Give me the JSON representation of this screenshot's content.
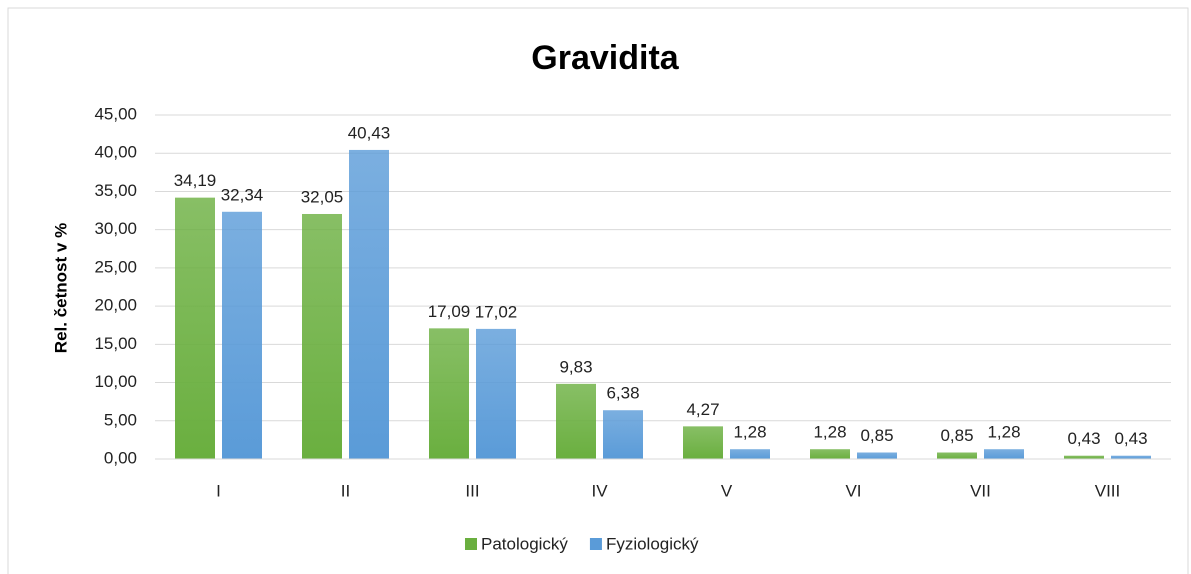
{
  "chart_data": {
    "type": "bar",
    "title": "Gravidita",
    "y_label": "Rel. četnost v %",
    "categories": [
      "I",
      "II",
      "III",
      "IV",
      "V",
      "VI",
      "VII",
      "VIII"
    ],
    "series": [
      {
        "name": "Patologický",
        "color": "#6aaf3f",
        "values": [
          34.19,
          32.05,
          17.09,
          9.83,
          4.27,
          1.28,
          0.85,
          0.43
        ],
        "value_labels": [
          "34,19",
          "32,05",
          "17,09",
          "9,83",
          "4,27",
          "1,28",
          "0,85",
          "0,43"
        ]
      },
      {
        "name": "Fyziologický",
        "color": "#5a9bd8",
        "values": [
          32.34,
          40.43,
          17.02,
          6.38,
          1.28,
          0.85,
          1.28,
          0.43
        ],
        "value_labels": [
          "32,34",
          "40,43",
          "17,02",
          "6,38",
          "1,28",
          "0,85",
          "1,28",
          "0,43"
        ]
      }
    ],
    "ylim": [
      0,
      45
    ],
    "yticks": [
      {
        "value": 0,
        "label": "0,00"
      },
      {
        "value": 5,
        "label": "5,00"
      },
      {
        "value": 10,
        "label": "10,00"
      },
      {
        "value": 15,
        "label": "15,00"
      },
      {
        "value": 20,
        "label": "20,00"
      },
      {
        "value": 25,
        "label": "25,00"
      },
      {
        "value": 30,
        "label": "30,00"
      },
      {
        "value": 35,
        "label": "35,00"
      },
      {
        "value": 40,
        "label": "40,00"
      },
      {
        "value": 45,
        "label": "45,00"
      }
    ],
    "grid": true,
    "legend": "bottom"
  }
}
